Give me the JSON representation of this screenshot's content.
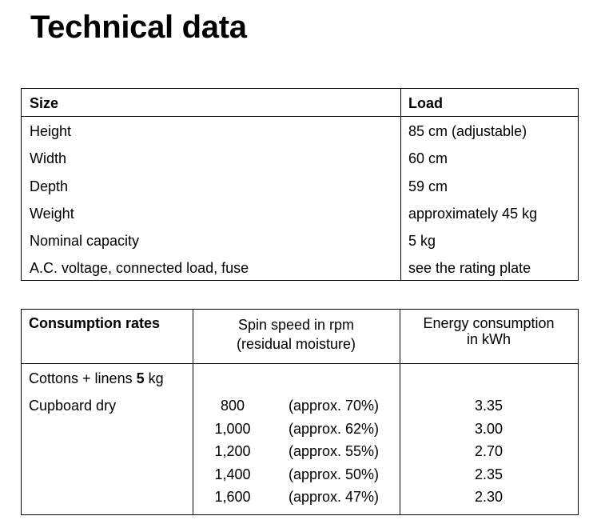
{
  "title": "Technical data",
  "size_table": {
    "header_left": "Size",
    "header_right": "Load",
    "rows": [
      {
        "label": "Height",
        "value": "85 cm (adjustable)"
      },
      {
        "label": "Width",
        "value": "60 cm"
      },
      {
        "label": "Depth",
        "value": "59 cm"
      },
      {
        "label": "Weight",
        "value": "approximately 45 kg"
      },
      {
        "label": "Nominal capacity",
        "value": "5 kg"
      },
      {
        "label": "A.C. voltage, connected load, fuse",
        "value": "see the rating plate"
      }
    ]
  },
  "consumption_table": {
    "header_left": "Consumption rates",
    "header_mid_line1": "Spin speed in rpm",
    "header_mid_line2": "(residual moisture)",
    "header_right_line1": "Energy consumption",
    "header_right_line2": "in kWh",
    "program_prefix": "Cottons + linens ",
    "program_load": "5",
    "program_unit": " kg",
    "program_sub": "Cupboard dry",
    "rows": [
      {
        "speed": "800",
        "moisture": "(approx. 70%)",
        "energy": "3.35"
      },
      {
        "speed": "1,000",
        "moisture": "(approx. 62%)",
        "energy": "3.00"
      },
      {
        "speed": "1,200",
        "moisture": "(approx. 55%)",
        "energy": "2.70"
      },
      {
        "speed": "1,400",
        "moisture": "(approx. 50%)",
        "energy": "2.35"
      },
      {
        "speed": "1,600",
        "moisture": "(approx. 47%)",
        "energy": "2.30"
      }
    ]
  }
}
